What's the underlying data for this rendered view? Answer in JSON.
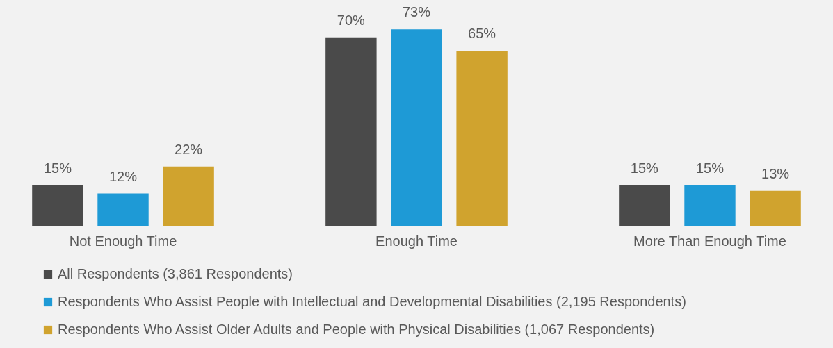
{
  "chart_data": {
    "type": "bar",
    "categories": [
      "Not Enough Time",
      "Enough Time",
      "More Than Enough Time"
    ],
    "series": [
      {
        "name": "All Respondents (3,861 Respondents)",
        "color": "#4a4a4a",
        "values": [
          15,
          70,
          15
        ],
        "value_labels": [
          "15%",
          "70%",
          "15%"
        ]
      },
      {
        "name": "Respondents Who Assist People with Intellectual and Developmental Disabilities (2,195 Respondents)",
        "color": "#1e9ad6",
        "values": [
          12,
          73,
          15
        ],
        "value_labels": [
          "12%",
          "73%",
          "15%"
        ]
      },
      {
        "name": "Respondents Who Assist Older Adults and People with Physical Disabilities (1,067 Respondents)",
        "color": "#d0a32e",
        "values": [
          22,
          65,
          13
        ],
        "value_labels": [
          "22%",
          "65%",
          "13%"
        ]
      }
    ],
    "legend": "bottom left"
  }
}
